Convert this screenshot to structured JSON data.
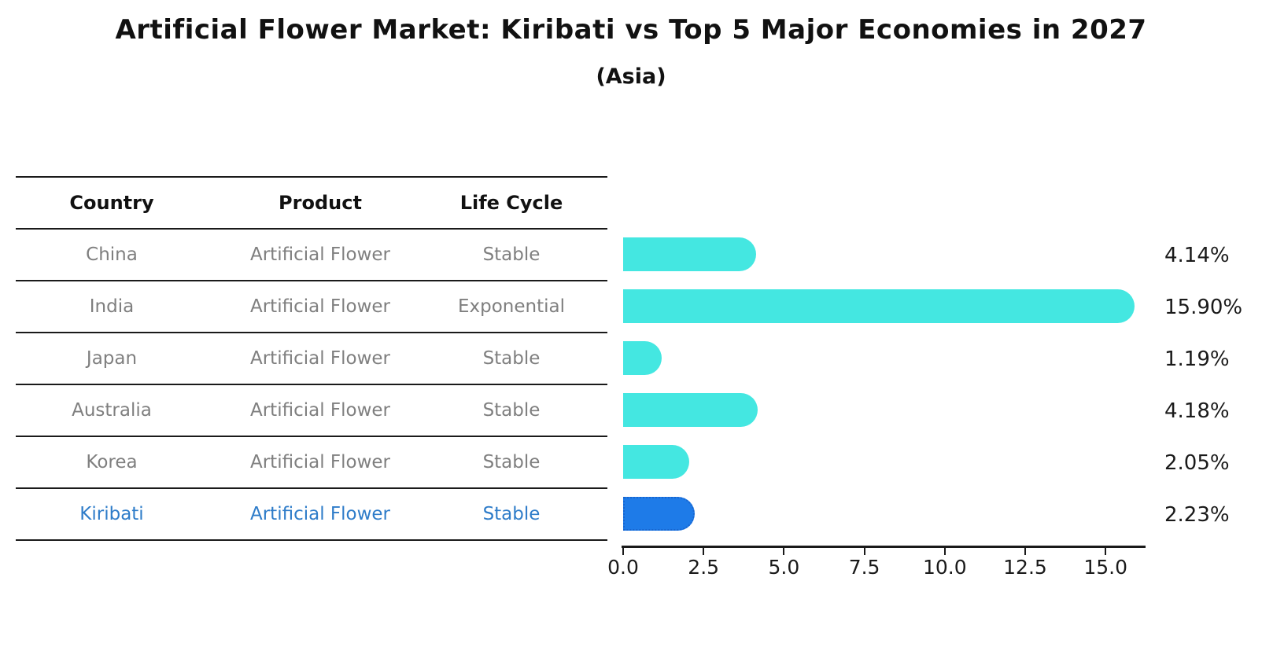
{
  "title": "Artificial Flower Market: Kiribati vs Top 5 Major Economies in 2027",
  "subtitle": "(Asia)",
  "table": {
    "headers": [
      "Country",
      "Product",
      "Life Cycle"
    ],
    "rows": [
      {
        "country": "China",
        "product": "Artificial Flower",
        "life_cycle": "Stable",
        "highlight": false
      },
      {
        "country": "India",
        "product": "Artificial Flower",
        "life_cycle": "Exponential",
        "highlight": false
      },
      {
        "country": "Japan",
        "product": "Artificial Flower",
        "life_cycle": "Stable",
        "highlight": false
      },
      {
        "country": "Australia",
        "product": "Artificial Flower",
        "life_cycle": "Stable",
        "highlight": false
      },
      {
        "country": "Korea",
        "product": "Artificial Flower",
        "life_cycle": "Stable",
        "highlight": false
      },
      {
        "country": "Kiribati",
        "product": "Artificial Flower",
        "life_cycle": "Stable",
        "highlight": true
      }
    ]
  },
  "chart_data": {
    "type": "bar",
    "orientation": "horizontal",
    "title": "Artificial Flower Market: Kiribati vs Top 5 Major Economies in 2027 (Asia)",
    "categories": [
      "China",
      "India",
      "Japan",
      "Australia",
      "Korea",
      "Kiribati"
    ],
    "values": [
      4.14,
      15.9,
      1.19,
      4.18,
      2.05,
      2.23
    ],
    "value_labels": [
      "4.14%",
      "15.90%",
      "1.19%",
      "4.18%",
      "2.05%",
      "2.23%"
    ],
    "highlight_index": 5,
    "x_tick_values": [
      0,
      2.5,
      5,
      7.5,
      10,
      12.5,
      15
    ],
    "x_tick_labels": [
      "0.0",
      "2.5",
      "5.0",
      "7.5",
      "10.0",
      "12.5",
      "15.0"
    ],
    "xlim": [
      0,
      16.25
    ],
    "grid": false,
    "legend": "none"
  },
  "colors": {
    "bar": "#44e7e1",
    "highlight_bar_fill": "#1e7be8",
    "highlight_bar_border": "#1865cf",
    "highlight_text": "#2e7cc9",
    "row_text": "#7f7f7f",
    "header_text": "#111111",
    "axis": "#1a1a1a"
  }
}
